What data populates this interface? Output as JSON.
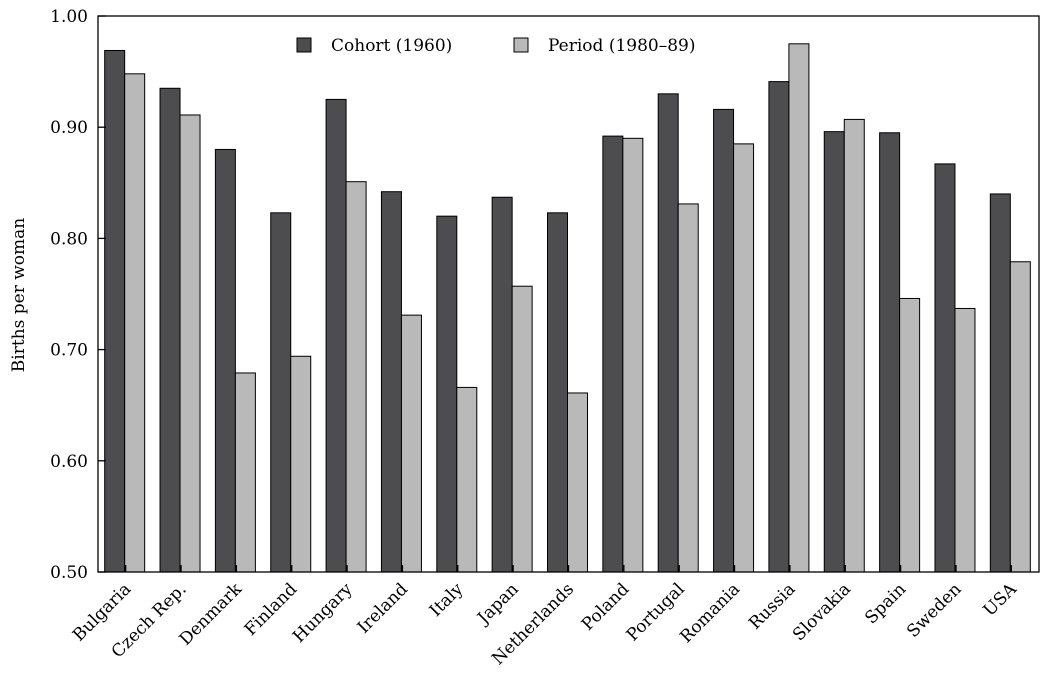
{
  "chart_data": {
    "type": "bar",
    "title": "",
    "xlabel": "",
    "ylabel": "Births per woman",
    "ylim": [
      0.5,
      1.0
    ],
    "yticks": [
      "0.50",
      "0.60",
      "0.70",
      "0.80",
      "0.90",
      "1.00"
    ],
    "grid": false,
    "legend_position": "top-center",
    "categories": [
      "Bulgaria",
      "Czech Rep.",
      "Denmark",
      "Finland",
      "Hungary",
      "Ireland",
      "Italy",
      "Japan",
      "Netherlands",
      "Poland",
      "Portugal",
      "Romania",
      "Russia",
      "Slovakia",
      "Spain",
      "Sweden",
      "USA"
    ],
    "series": [
      {
        "name": "Cohort (1960)",
        "color": "#4d4d4f",
        "values": [
          0.969,
          0.935,
          0.88,
          0.823,
          0.925,
          0.842,
          0.82,
          0.837,
          0.823,
          0.892,
          0.93,
          0.916,
          0.941,
          0.896,
          0.895,
          0.867,
          0.84
        ]
      },
      {
        "name": "Period (1980–89)",
        "color": "#b9b9b9",
        "values": [
          0.948,
          0.911,
          0.679,
          0.694,
          0.851,
          0.731,
          0.666,
          0.757,
          0.661,
          0.89,
          0.831,
          0.885,
          0.975,
          0.907,
          0.746,
          0.737,
          0.779
        ]
      }
    ]
  }
}
